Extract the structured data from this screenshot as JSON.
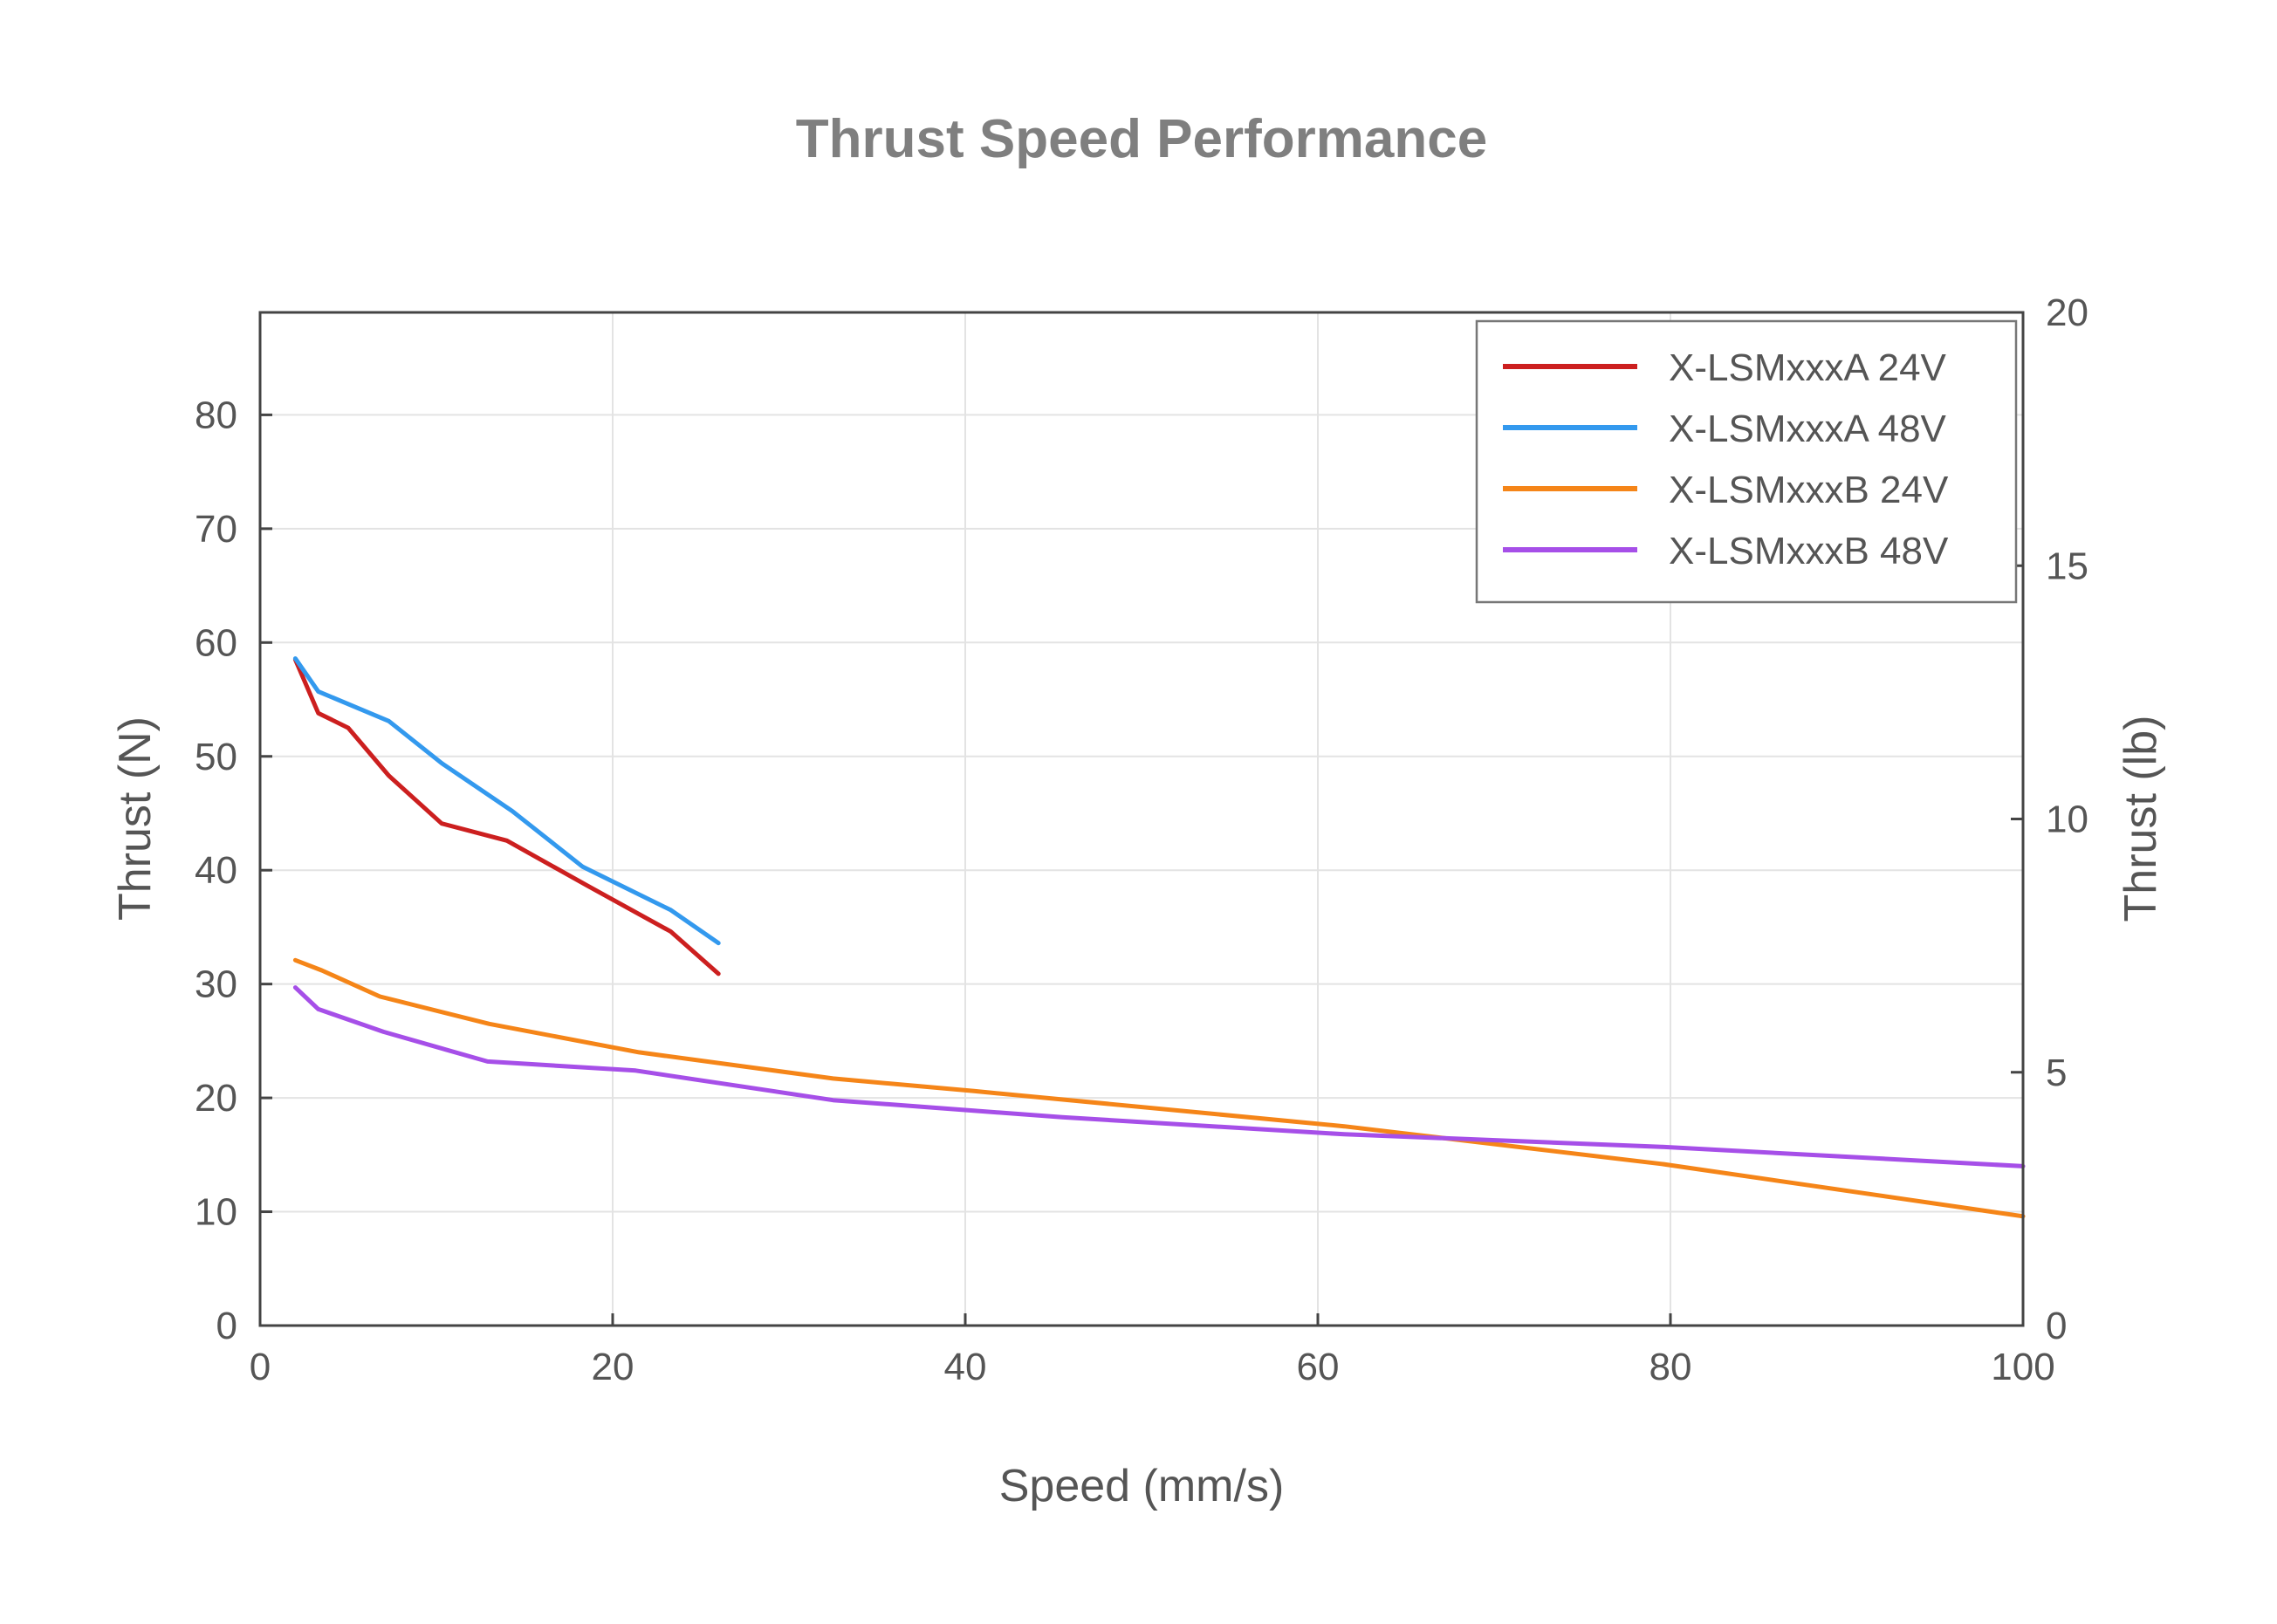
{
  "chart_data": {
    "type": "line",
    "title": "Thrust Speed Performance",
    "xlabel": "Speed (mm/s)",
    "ylabel": "Thrust (N)",
    "y2label": "Thrust (lb)",
    "xlim": [
      0,
      100
    ],
    "ylim": [
      0,
      89
    ],
    "y2lim": [
      0,
      20
    ],
    "xticks": [
      0,
      20,
      40,
      60,
      80,
      100
    ],
    "yticks": [
      0,
      10,
      20,
      30,
      40,
      50,
      60,
      70,
      80
    ],
    "y2ticks": [
      0,
      5,
      10,
      15,
      20
    ],
    "grid": true,
    "legend_position": "top-right",
    "series": [
      {
        "name": "X-LSMxxxA 24V",
        "color": "#cc1f1f",
        "x": [
          2,
          3.3,
          5,
          7.3,
          10.3,
          14,
          18.5,
          23.3,
          26
        ],
        "y": [
          58.5,
          53.8,
          52.5,
          48.3,
          44.1,
          42.6,
          38.7,
          34.6,
          30.9
        ]
      },
      {
        "name": "X-LSMxxxA 48V",
        "color": "#3399ee",
        "x": [
          2,
          3.3,
          7.3,
          10.3,
          14.3,
          18.3,
          23.3,
          26
        ],
        "y": [
          58.6,
          55.7,
          53.1,
          49.4,
          45.2,
          40.3,
          36.5,
          33.6
        ]
      },
      {
        "name": "X-LSMxxxB 24V",
        "color": "#f58518",
        "x": [
          2,
          3.5,
          6.8,
          13,
          21.5,
          32.5,
          40.5,
          61.5,
          79.5,
          100
        ],
        "y": [
          32.1,
          31.2,
          28.9,
          26.5,
          24,
          21.7,
          20.6,
          17.5,
          14.2,
          9.6
        ]
      },
      {
        "name": "X-LSMxxxB 48V",
        "color": "#a64fe8",
        "x": [
          2,
          3.3,
          7,
          12.9,
          21.3,
          32.5,
          45.5,
          61.5,
          79.5,
          100
        ],
        "y": [
          29.7,
          27.8,
          25.8,
          23.2,
          22.4,
          19.8,
          18.3,
          16.8,
          15.7,
          14
        ]
      }
    ]
  }
}
